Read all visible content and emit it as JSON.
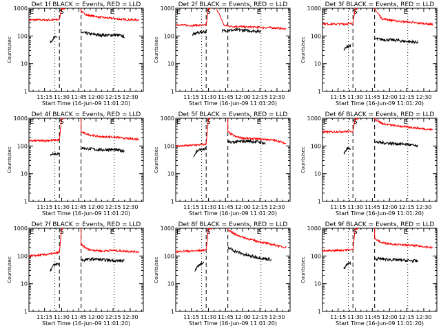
{
  "figure": {
    "background": "#ffffff",
    "event_color": "#000000",
    "lld_color": "#ff0000"
  },
  "chart_data": [
    {
      "type": "line",
      "title": "Det 1f BLACK = Events, RED = LLD",
      "xlabel": "Start Time (16-Jun-09 11:01:20)",
      "ylabel": "Counts/sec",
      "yscale": "log",
      "ylim": [
        1,
        1000
      ],
      "xticks": [
        "11:15",
        "11:30",
        "11:45",
        "12:00",
        "12:15",
        "12:30"
      ],
      "yticks": [
        "1",
        "10",
        "100",
        "1000"
      ],
      "markers": {
        "S": "11:30",
        "E": "12:16"
      },
      "dashed_lines": [
        "11:28",
        "11:47"
      ],
      "dotted_lines": [
        "11:24",
        "12:16"
      ],
      "series": [
        {
          "role": "lld",
          "segments": [
            {
              "start": "11:01",
              "end": "11:28",
              "levels": [
                380,
                380,
                380,
                380,
                390
              ]
            },
            {
              "start": "11:30",
              "end": "11:33",
              "levels": [
                1000,
                1000
              ]
            },
            {
              "start": "11:47",
              "end": "12:38",
              "levels": [
                760,
                560,
                520,
                470,
                450,
                430,
                400,
                390,
                380,
                380
              ]
            }
          ]
        },
        {
          "role": "events",
          "segments": [
            {
              "start": "11:20",
              "end": "11:26",
              "levels": [
                60,
                85,
                90
              ]
            },
            {
              "start": "11:47",
              "end": "12:25",
              "levels": [
                130,
                125,
                115,
                110,
                108,
                105,
                110,
                105,
                95
              ]
            }
          ]
        }
      ]
    },
    {
      "type": "line",
      "title": "Det 2f BLACK = Events, RED = LLD",
      "xlabel": "Start Time (16-Jun-09 11:01:20)",
      "ylabel": "Counts/sec",
      "yscale": "log",
      "ylim": [
        1,
        1000
      ],
      "xticks": [
        "11:15",
        "11:30",
        "11:45",
        "12:00",
        "12:15",
        "12:30"
      ],
      "yticks": [
        "1",
        "10",
        "100",
        "1000"
      ],
      "markers": {
        "S": "11:30",
        "E": "12:16"
      },
      "dashed_lines": [
        "11:28",
        "11:47"
      ],
      "dotted_lines": [
        "11:24",
        "12:16"
      ],
      "series": [
        {
          "role": "lld",
          "segments": [
            {
              "start": "11:01",
              "end": "11:28",
              "levels": [
                260,
                250,
                240,
                240,
                245,
                240
              ]
            },
            {
              "start": "11:30",
              "end": "11:33",
              "levels": [
                1000,
                1000
              ]
            },
            {
              "start": "11:37",
              "end": "12:38",
              "levels": [
                1000,
                240,
                220,
                220,
                210,
                210,
                200,
                200,
                190,
                180
              ]
            }
          ]
        },
        {
          "role": "events",
          "segments": [
            {
              "start": "11:16",
              "end": "11:28",
              "levels": [
                110,
                130,
                140,
                145
              ]
            },
            {
              "start": "11:42",
              "end": "12:16",
              "levels": [
                150,
                160,
                160,
                165,
                160,
                155,
                150,
                145
              ]
            }
          ]
        }
      ]
    },
    {
      "type": "line",
      "title": "Det 3f BLACK = Events, RED = LLD",
      "xlabel": "Start Time (16-Jun-09 11:01:20)",
      "ylabel": "Counts/sec",
      "yscale": "log",
      "ylim": [
        1,
        1000
      ],
      "xticks": [
        "11:15",
        "11:30",
        "11:45",
        "12:00",
        "12:15",
        "12:30"
      ],
      "yticks": [
        "1",
        "10",
        "100",
        "1000"
      ],
      "markers": {
        "S": "11:30",
        "E": "12:16"
      },
      "dashed_lines": [
        "11:28",
        "11:47"
      ],
      "dotted_lines": [
        "11:24",
        "12:16"
      ],
      "series": [
        {
          "role": "lld",
          "segments": [
            {
              "start": "11:01",
              "end": "11:28",
              "levels": [
                280,
                270,
                270,
                275,
                280
              ]
            },
            {
              "start": "11:30",
              "end": "11:33",
              "levels": [
                1000,
                1000
              ]
            },
            {
              "start": "11:47",
              "end": "12:38",
              "levels": [
                950,
                420,
                380,
                350,
                330,
                310,
                290,
                280,
                260
              ]
            }
          ]
        },
        {
          "role": "events",
          "segments": [
            {
              "start": "11:20",
              "end": "11:26",
              "levels": [
                30,
                42,
                45
              ]
            },
            {
              "start": "11:47",
              "end": "12:25",
              "levels": [
                78,
                75,
                72,
                70,
                65,
                62,
                60
              ]
            }
          ]
        }
      ]
    },
    {
      "type": "line",
      "title": "Det 4f BLACK = Events, RED = LLD",
      "xlabel": "Start Time (16-Jun-09 11:01:20)",
      "ylabel": "Counts/sec",
      "yscale": "log",
      "ylim": [
        1,
        1000
      ],
      "xticks": [
        "11:15",
        "11:30",
        "11:45",
        "12:00",
        "12:15",
        "12:30"
      ],
      "yticks": [
        "1",
        "10",
        "100",
        "1000"
      ],
      "markers": {
        "S": "11:30",
        "E": "12:16"
      },
      "dashed_lines": [
        "11:28",
        "11:47"
      ],
      "dotted_lines": [
        "11:24",
        "12:16"
      ],
      "series": [
        {
          "role": "lld",
          "segments": [
            {
              "start": "11:01",
              "end": "11:28",
              "levels": [
                150,
                155,
                155,
                160,
                165
              ]
            },
            {
              "start": "11:30",
              "end": "11:33",
              "levels": [
                1000,
                1000
              ]
            },
            {
              "start": "11:47",
              "end": "12:38",
              "levels": [
                320,
                260,
                230,
                210,
                215,
                205,
                190,
                180,
                175
              ]
            }
          ]
        },
        {
          "role": "events",
          "segments": [
            {
              "start": "11:20",
              "end": "11:28",
              "levels": [
                45,
                55,
                52,
                50
              ]
            },
            {
              "start": "11:47",
              "end": "12:25",
              "levels": [
                85,
                80,
                75,
                72,
                75,
                70,
                68
              ]
            }
          ]
        }
      ]
    },
    {
      "type": "line",
      "title": "Det 5f BLACK = Events, RED = LLD",
      "xlabel": "Start Time (16-Jun-09 11:01:20)",
      "ylabel": "Counts/sec",
      "yscale": "log",
      "ylim": [
        1,
        1000
      ],
      "xticks": [
        "11:15",
        "11:30",
        "11:45",
        "12:00",
        "12:15",
        "12:30"
      ],
      "yticks": [
        "1",
        "10",
        "100",
        "1000"
      ],
      "markers": {
        "S": "11:30",
        "E": "12:16"
      },
      "dashed_lines": [
        "11:28",
        "11:47"
      ],
      "dotted_lines": [
        "11:24",
        "12:16"
      ],
      "series": [
        {
          "role": "lld",
          "segments": [
            {
              "start": "11:01",
              "end": "11:28",
              "levels": [
                100,
                100,
                105,
                110,
                115
              ]
            },
            {
              "start": "11:30",
              "end": "11:33",
              "levels": [
                1000,
                1000
              ]
            },
            {
              "start": "11:47",
              "end": "12:38",
              "levels": [
                320,
                220,
                195,
                185,
                180,
                175,
                165,
                150,
                120
              ]
            }
          ]
        },
        {
          "role": "events",
          "segments": [
            {
              "start": "11:17",
              "end": "11:28",
              "levels": [
                45,
                70,
                75,
                80
              ]
            },
            {
              "start": "11:47",
              "end": "12:20",
              "levels": [
                135,
                140,
                145,
                150,
                145,
                140,
                120
              ]
            }
          ]
        }
      ]
    },
    {
      "type": "line",
      "title": "Det 6f BLACK = Events, RED = LLD",
      "xlabel": "Start Time (16-Jun-09 11:01:20)",
      "ylabel": "Counts/sec",
      "yscale": "log",
      "ylim": [
        1,
        1000
      ],
      "xticks": [
        "11:15",
        "11:30",
        "11:45",
        "12:00",
        "12:15",
        "12:30"
      ],
      "yticks": [
        "1",
        "10",
        "100",
        "1000"
      ],
      "markers": {
        "S": "11:30",
        "E": "12:16"
      },
      "dashed_lines": [
        "11:28",
        "11:47"
      ],
      "dotted_lines": [
        "11:24",
        "12:16"
      ],
      "series": [
        {
          "role": "lld",
          "segments": [
            {
              "start": "11:01",
              "end": "11:28",
              "levels": [
                320,
                320,
                330,
                330,
                340
              ]
            },
            {
              "start": "11:30",
              "end": "11:33",
              "levels": [
                1000,
                1000
              ]
            },
            {
              "start": "11:47",
              "end": "12:38",
              "levels": [
                950,
                650,
                580,
                530,
                500,
                470,
                440,
                410,
                380
              ]
            }
          ]
        },
        {
          "role": "events",
          "segments": [
            {
              "start": "11:20",
              "end": "11:26",
              "levels": [
                55,
                80,
                85
              ]
            },
            {
              "start": "11:47",
              "end": "12:25",
              "levels": [
                140,
                130,
                125,
                120,
                118,
                110,
                95
              ]
            }
          ]
        }
      ]
    },
    {
      "type": "line",
      "title": "Det 7f BLACK = Events, RED = LLD",
      "xlabel": "Start Time (16-Jun-09 11:01:20)",
      "ylabel": "Counts/sec",
      "yscale": "log",
      "ylim": [
        1,
        1000
      ],
      "xticks": [
        "11:15",
        "11:30",
        "11:45",
        "12:00",
        "12:15",
        "12:30"
      ],
      "yticks": [
        "1",
        "10",
        "100",
        "1000"
      ],
      "markers": {
        "S": "11:30",
        "E": "12:16"
      },
      "dashed_lines": [
        "11:28",
        "11:47"
      ],
      "dotted_lines": [
        "11:24",
        "12:16"
      ],
      "series": [
        {
          "role": "lld",
          "segments": [
            {
              "start": "11:01",
              "end": "11:28",
              "levels": [
                100,
                105,
                110,
                120,
                135
              ]
            },
            {
              "start": "11:30",
              "end": "11:33",
              "levels": [
                1000,
                1000
              ]
            },
            {
              "start": "11:47",
              "end": "12:38",
              "levels": [
                260,
                170,
                160,
                150,
                160,
                155,
                150,
                145,
                140
              ]
            }
          ]
        },
        {
          "role": "events",
          "segments": [
            {
              "start": "11:20",
              "end": "11:28",
              "levels": [
                30,
                45,
                50,
                52
              ]
            },
            {
              "start": "11:47",
              "end": "12:25",
              "levels": [
                70,
                75,
                78,
                72,
                70,
                68,
                65
              ]
            }
          ]
        }
      ]
    },
    {
      "type": "line",
      "title": "Det 8f BLACK = Events, RED = LLD",
      "xlabel": "Start Time (16-Jun-09 11:01:20)",
      "ylabel": "Counts/sec",
      "yscale": "log",
      "ylim": [
        1,
        1000
      ],
      "xticks": [
        "11:15",
        "11:30",
        "11:45",
        "12:00",
        "12:15",
        "12:30"
      ],
      "yticks": [
        "1",
        "10",
        "100",
        "1000"
      ],
      "markers": {
        "S": "11:30",
        "E": "12:16"
      },
      "dashed_lines": [
        "11:28",
        "11:47"
      ],
      "dotted_lines": [
        "11:24",
        "12:16"
      ],
      "series": [
        {
          "role": "lld",
          "segments": [
            {
              "start": "11:01",
              "end": "11:28",
              "levels": [
                140,
                150,
                150,
                155,
                165
              ]
            },
            {
              "start": "11:30",
              "end": "11:33",
              "levels": [
                1000,
                1000
              ]
            },
            {
              "start": "11:47",
              "end": "12:38",
              "levels": [
                900,
                600,
                480,
                400,
                340,
                300,
                260,
                230,
                200
              ]
            }
          ]
        },
        {
          "role": "events",
          "segments": [
            {
              "start": "11:18",
              "end": "11:26",
              "levels": [
                30,
                50,
                55
              ]
            },
            {
              "start": "11:47",
              "end": "12:25",
              "levels": [
                200,
                150,
                120,
                100,
                90,
                80,
                75
              ]
            }
          ]
        }
      ]
    },
    {
      "type": "line",
      "title": "Det 9f BLACK = Events, RED = LLD",
      "xlabel": "Start Time (16-Jun-09 11:01:20)",
      "ylabel": "Counts/sec",
      "yscale": "log",
      "ylim": [
        1,
        1000
      ],
      "xticks": [
        "11:15",
        "11:30",
        "11:45",
        "12:00",
        "12:15",
        "12:30"
      ],
      "yticks": [
        "1",
        "10",
        "100",
        "1000"
      ],
      "markers": {
        "S": "11:30",
        "E": "12:16"
      },
      "dashed_lines": [
        "11:28",
        "11:47"
      ],
      "dotted_lines": [
        "11:24",
        "12:16"
      ],
      "series": [
        {
          "role": "lld",
          "segments": [
            {
              "start": "11:01",
              "end": "11:28",
              "levels": [
                150,
                155,
                160,
                165,
                170
              ]
            },
            {
              "start": "11:30",
              "end": "11:33",
              "levels": [
                1000,
                1000
              ]
            },
            {
              "start": "11:47",
              "end": "12:38",
              "levels": [
                420,
                300,
                280,
                260,
                250,
                240,
                230,
                215,
                195
              ]
            }
          ]
        },
        {
          "role": "events",
          "segments": [
            {
              "start": "11:20",
              "end": "11:26",
              "levels": [
                35,
                50,
                55
              ]
            },
            {
              "start": "11:47",
              "end": "12:25",
              "levels": [
                80,
                78,
                75,
                72,
                70,
                68,
                65
              ]
            }
          ]
        }
      ]
    }
  ]
}
